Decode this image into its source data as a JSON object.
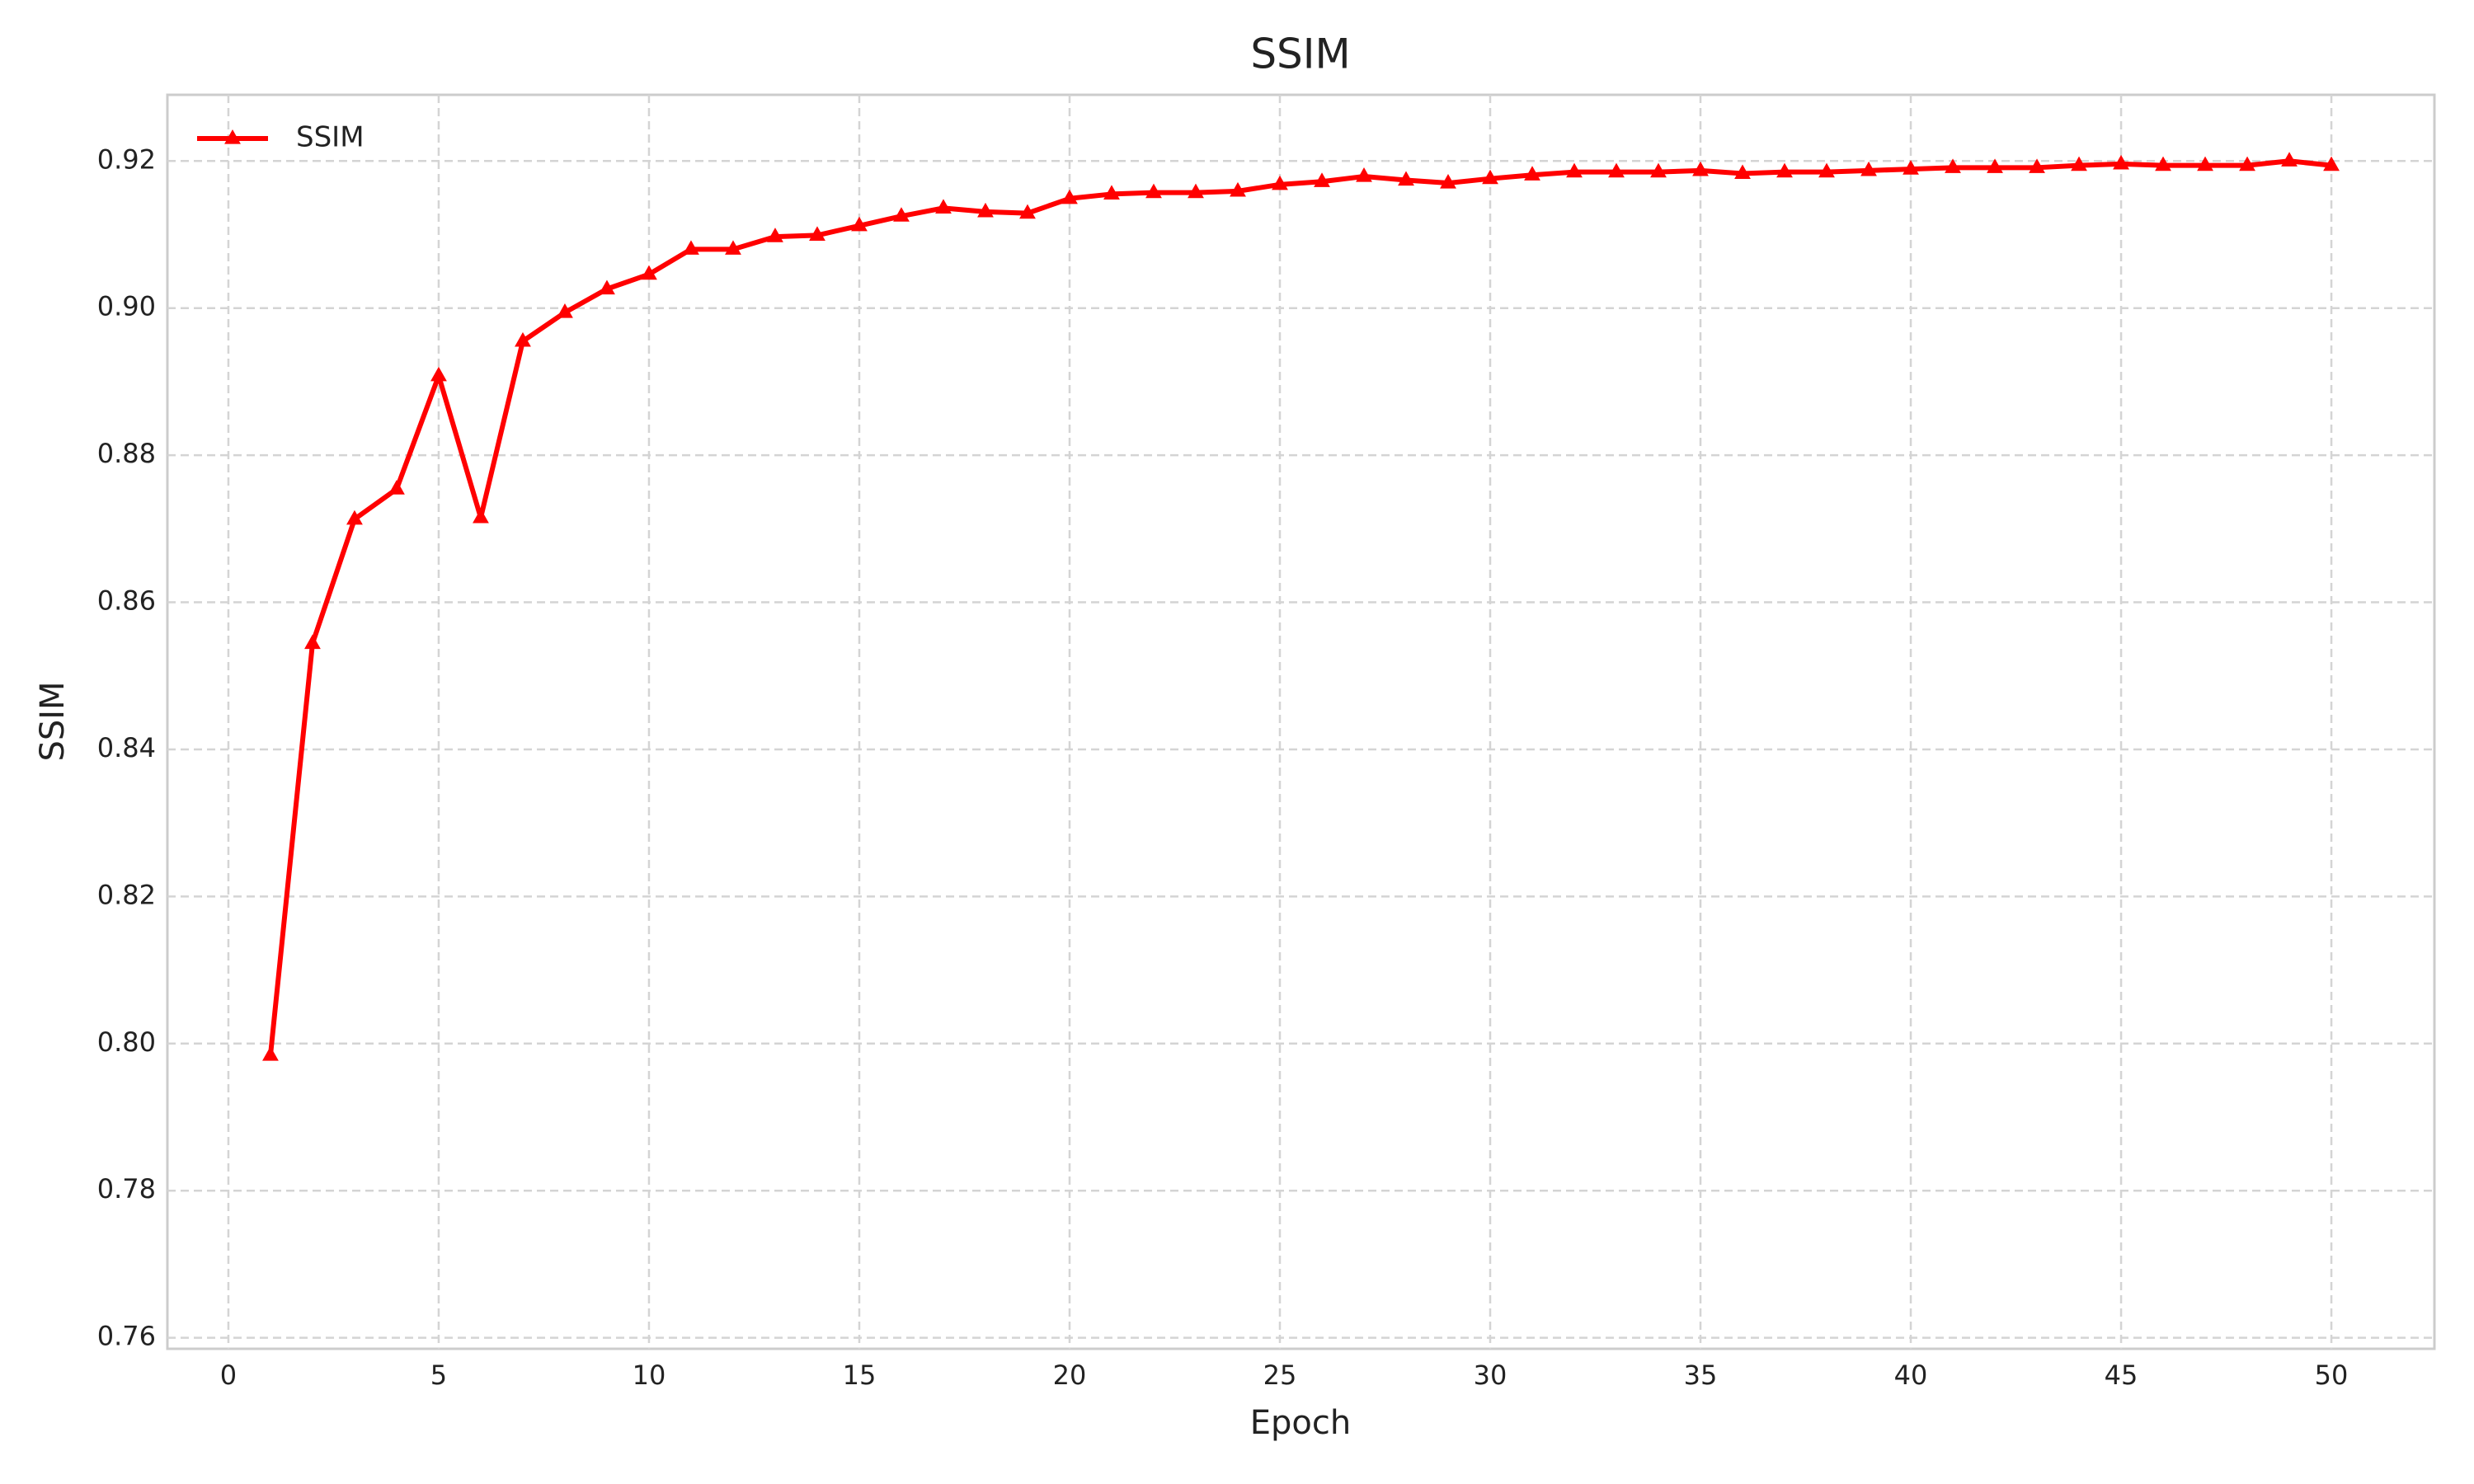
{
  "chart_data": {
    "type": "line",
    "title": "SSIM",
    "x_label": "Epoch",
    "y_label": "SSIM",
    "x": [
      1,
      2,
      3,
      4,
      5,
      6,
      7,
      8,
      9,
      10,
      11,
      12,
      13,
      14,
      15,
      16,
      17,
      18,
      19,
      20,
      21,
      22,
      23,
      24,
      25,
      26,
      27,
      28,
      29,
      30,
      31,
      32,
      33,
      34,
      35,
      36,
      37,
      38,
      39,
      40,
      41,
      42,
      43,
      44,
      45,
      46,
      47,
      48,
      49,
      50
    ],
    "series": [
      {
        "name": "SSIM",
        "color": "#ff0000",
        "marker": "triangle",
        "values": [
          0.7984,
          0.8544,
          0.8713,
          0.8754,
          0.8908,
          0.8715,
          0.8955,
          0.8994,
          0.9026,
          0.9046,
          0.908,
          0.908,
          0.9097,
          0.9099,
          0.9112,
          0.9125,
          0.9136,
          0.9131,
          0.9129,
          0.9149,
          0.9155,
          0.9157,
          0.9157,
          0.9159,
          0.9168,
          0.9172,
          0.9179,
          0.9174,
          0.917,
          0.9176,
          0.9181,
          0.9185,
          0.9185,
          0.9185,
          0.9187,
          0.9183,
          0.9185,
          0.9185,
          0.9187,
          0.9189,
          0.9191,
          0.9191,
          0.9191,
          0.9194,
          0.9196,
          0.9194,
          0.9194,
          0.9194,
          0.92,
          0.9194
        ]
      }
    ],
    "xlim": [
      -1.45,
      52.45
    ],
    "xticks": [
      0,
      5,
      10,
      15,
      20,
      25,
      30,
      35,
      40,
      45,
      50
    ],
    "ylim": [
      0.7585,
      0.929
    ],
    "yticks": [
      0.76,
      0.78,
      {
        "value": 0.8,
        "label": "0.80"
      },
      0.82,
      0.84,
      0.86,
      0.88,
      {
        "value": 0.9,
        "label": "0.90"
      },
      0.92
    ],
    "grid": true,
    "legend": "upper left"
  }
}
